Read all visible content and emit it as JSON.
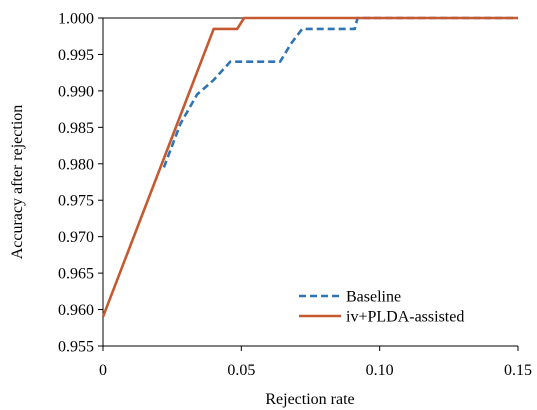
{
  "chart_data": {
    "type": "line",
    "title": "",
    "xlabel": "Rejection rate",
    "ylabel": "Accuracy after rejection",
    "xlim": [
      0,
      0.15
    ],
    "ylim": [
      0.955,
      1.0
    ],
    "x_ticks": [
      0,
      0.05,
      0.1,
      0.15
    ],
    "x_tick_labels": [
      "0",
      "0.05",
      "0.10",
      "0.15"
    ],
    "y_ticks": [
      0.955,
      0.96,
      0.965,
      0.97,
      0.975,
      0.98,
      0.985,
      0.99,
      0.995,
      1.0
    ],
    "y_tick_labels": [
      "0.955",
      "0.960",
      "0.965",
      "0.970",
      "0.975",
      "0.980",
      "0.985",
      "0.990",
      "0.995",
      "1.000"
    ],
    "grid": false,
    "legend_position": "bottom-right",
    "series": [
      {
        "name": "Baseline",
        "color": "#2e75b6",
        "style": "dashed",
        "x": [
          0.022,
          0.028,
          0.034,
          0.04,
          0.046,
          0.058,
          0.064,
          0.068,
          0.072,
          0.078,
          0.091,
          0.092,
          0.15
        ],
        "y": [
          0.9795,
          0.9855,
          0.9895,
          0.9915,
          0.994,
          0.994,
          0.994,
          0.9965,
          0.9985,
          0.9985,
          0.9985,
          1.0,
          1.0
        ]
      },
      {
        "name": "iv+PLDA-assisted",
        "color": "#c55a30",
        "style": "solid",
        "x": [
          0,
          0.04,
          0.0485,
          0.051,
          0.15
        ],
        "y": [
          0.959,
          0.9985,
          0.9985,
          1.0,
          1.0
        ]
      }
    ]
  }
}
